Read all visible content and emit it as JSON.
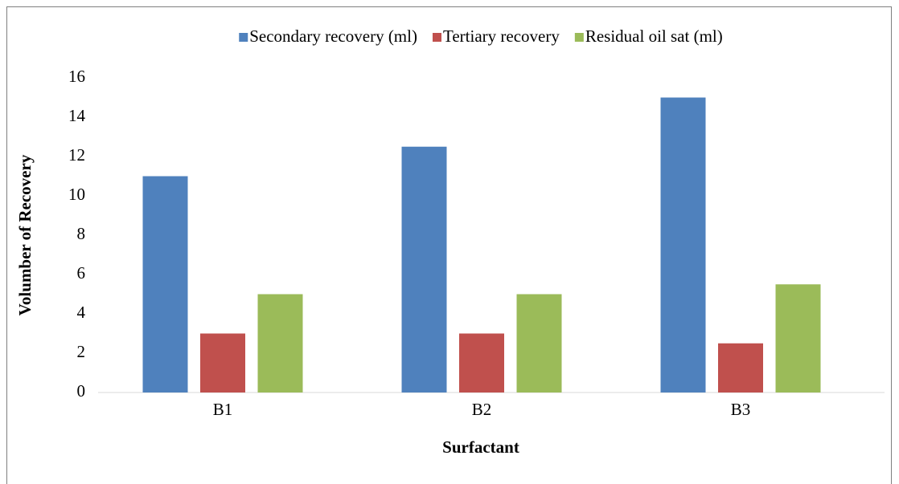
{
  "chart_data": {
    "type": "bar",
    "xlabel": "Surfactant",
    "ylabel": "Volumber of Recovery",
    "categories": [
      "B1",
      "B2",
      "B3"
    ],
    "series": [
      {
        "name": "Secondary recovery (ml)",
        "color": "#4f81bd",
        "values": [
          11,
          12.5,
          15
        ]
      },
      {
        "name": "Tertiary recovery",
        "color": "#c0504d",
        "values": [
          3,
          3,
          2.5
        ]
      },
      {
        "name": "Residual oil sat (ml)",
        "color": "#9bbb59",
        "values": [
          5,
          5,
          5.5
        ]
      }
    ],
    "ylim": [
      0,
      16
    ],
    "yticks": [
      0,
      2,
      4,
      6,
      8,
      10,
      12,
      14,
      16
    ],
    "grid": false,
    "legend": "top"
  }
}
